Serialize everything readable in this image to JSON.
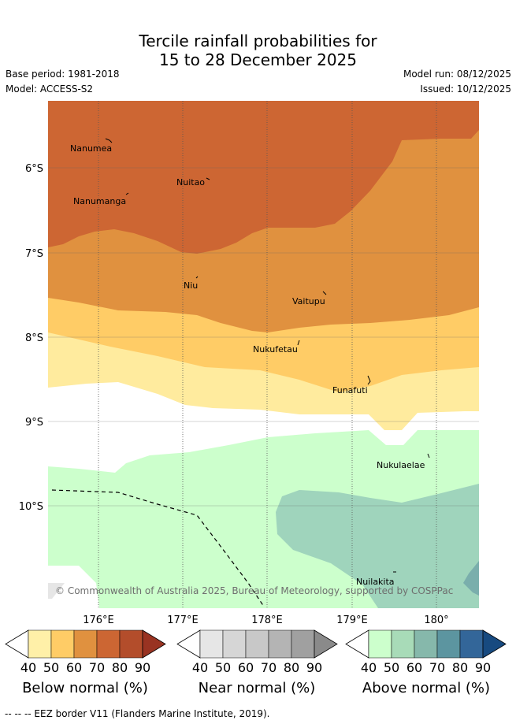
{
  "title": {
    "line1": "Tercile rainfall probabilities for",
    "line2": "15 to 28 December 2025"
  },
  "meta": {
    "base_period": "Base period: 1981-2018",
    "model": "Model: ACCESS-S2",
    "model_run": "Model run: 08/12/2025",
    "issued": "Issued: 10/12/2025"
  },
  "map": {
    "lat_labels": [
      "6°S",
      "7°S",
      "8°S",
      "9°S",
      "10°S"
    ],
    "lon_labels": [
      "176°E",
      "177°E",
      "178°E",
      "179°E",
      "180°"
    ],
    "islands": [
      "Nanumea",
      "Nuitao",
      "Nanumanga",
      "Niu",
      "Vaitupu",
      "Nukufetau",
      "Funafuti",
      "Nukulaelae",
      "Nuilakita"
    ],
    "copyright": "© Commonwealth of Australia 2025, Bureau of Meteorology, supported by COSPPac"
  },
  "colorbars": [
    {
      "label": "Below normal (%)",
      "ticks": [
        "40",
        "50",
        "60",
        "70",
        "80",
        "90"
      ],
      "colors": [
        "#fff0a8",
        "#ffcc66",
        "#e0913f",
        "#cc6633",
        "#b34d2b",
        "#993322"
      ]
    },
    {
      "label": "Near normal (%)",
      "ticks": [
        "40",
        "50",
        "60",
        "70",
        "80",
        "90"
      ],
      "colors": [
        "#e6e6e6",
        "#d6d6d6",
        "#c8c8c8",
        "#b4b4b4",
        "#a0a0a0",
        "#8a8a8a"
      ]
    },
    {
      "label": "Above normal (%)",
      "ticks": [
        "40",
        "50",
        "60",
        "70",
        "80",
        "90"
      ],
      "colors": [
        "#ccffcc",
        "#a8dbb8",
        "#86b8ab",
        "#5c95a0",
        "#336699",
        "#174a80"
      ]
    }
  ],
  "footer": "-- -- -- EEZ border V11 (Flanders Marine Institute, 2019).",
  "colors": {
    "bg": "#ffffff",
    "grid": "#555555"
  }
}
